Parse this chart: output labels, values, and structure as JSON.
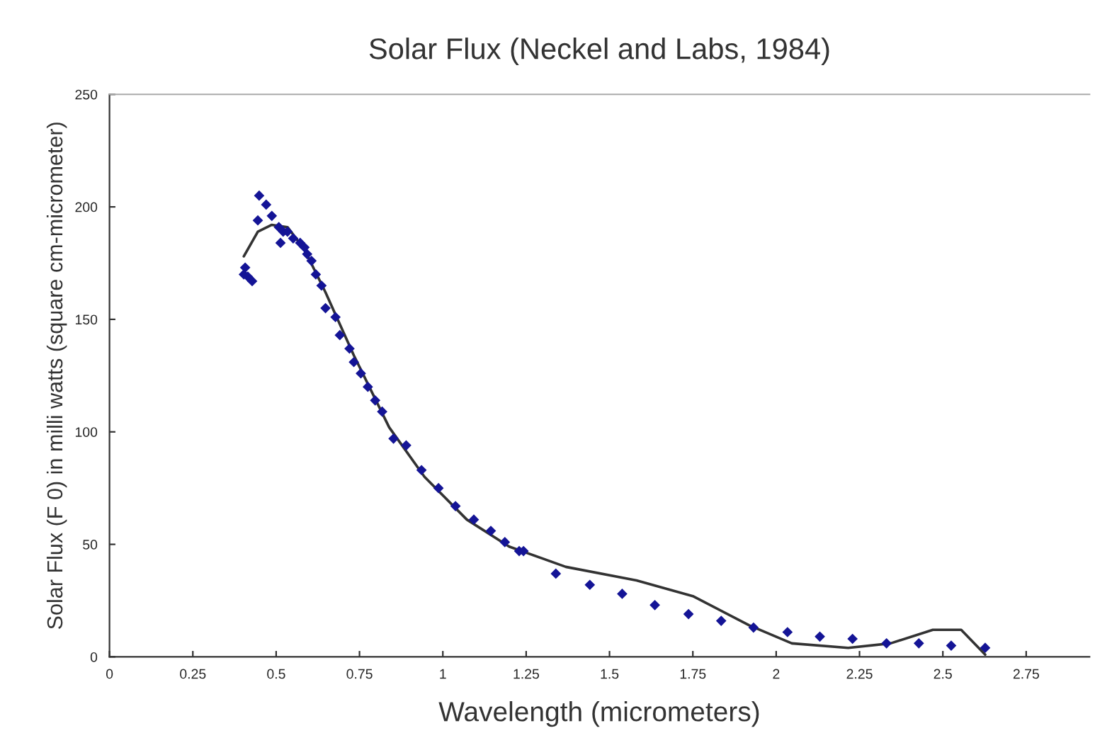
{
  "chart_data": {
    "type": "scatter",
    "title": "Solar Flux (Neckel and Labs, 1984)",
    "xlabel": "Wavelength (micrometers)",
    "ylabel": "Solar Flux (F 0) in milli watts (square cm-micrometer)",
    "xlim": [
      0,
      2.94
    ],
    "xticks": [
      0,
      0.25,
      0.5,
      0.75,
      1,
      1.25,
      1.5,
      1.75,
      2,
      2.25,
      2.5,
      2.75
    ],
    "ylim": [
      0,
      250
    ],
    "yticks": [
      0,
      50,
      100,
      150,
      200,
      250
    ],
    "grid": false,
    "legend": false,
    "series": [
      {
        "marker": "diamond",
        "color": "#141496",
        "x": [
          0.407,
          0.415,
          0.428,
          0.403,
          0.449,
          0.47,
          0.445,
          0.487,
          0.508,
          0.521,
          0.534,
          0.513,
          0.551,
          0.572,
          0.585,
          0.593,
          0.606,
          0.619,
          0.636,
          0.648,
          0.678,
          0.691,
          0.72,
          0.733,
          0.754,
          0.775,
          0.797,
          0.818,
          0.852,
          0.89,
          0.936,
          0.987,
          1.038,
          1.093,
          1.144,
          1.186,
          1.229,
          1.242,
          1.339,
          1.441,
          1.538,
          1.636,
          1.737,
          1.835,
          1.932,
          2.034,
          2.131,
          2.229,
          2.331,
          2.428,
          2.525,
          2.627
        ],
        "values": [
          173,
          169,
          167,
          170,
          205,
          201,
          194,
          196,
          191,
          189,
          189,
          184,
          186,
          184,
          182,
          179,
          176,
          170,
          165,
          155,
          151,
          143,
          137,
          131,
          126,
          120,
          114,
          109,
          97,
          94,
          83,
          75,
          67,
          61,
          56,
          51,
          47,
          47,
          37,
          32,
          28,
          23,
          19,
          16,
          13,
          11,
          9,
          8,
          6,
          6,
          5,
          4
        ]
      },
      {
        "type": "line",
        "marker": "none",
        "color": "#333333",
        "line_style": "solid",
        "x": [
          0.403,
          0.445,
          0.487,
          0.534,
          0.585,
          0.648,
          0.733,
          0.839,
          0.945,
          1.072,
          1.199,
          1.369,
          1.581,
          1.75,
          1.919,
          2.047,
          2.216,
          2.343,
          2.47,
          2.555,
          2.627
        ],
        "values": [
          178,
          189,
          192,
          191,
          181,
          162,
          134,
          102,
          80,
          61,
          49,
          40,
          34,
          27,
          14,
          6,
          4,
          6,
          12,
          12,
          1
        ]
      }
    ]
  }
}
